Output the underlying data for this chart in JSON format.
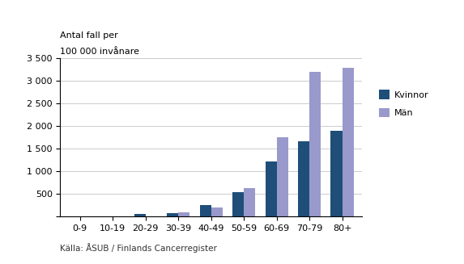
{
  "categories": [
    "0-9",
    "10-19",
    "20-29",
    "30-39",
    "40-49",
    "50-59",
    "60-69",
    "70-79",
    "80+"
  ],
  "kvinnor": [
    0,
    0,
    50,
    75,
    260,
    540,
    1210,
    1670,
    1900
  ],
  "man": [
    0,
    0,
    0,
    90,
    200,
    630,
    1750,
    3200,
    3280
  ],
  "color_kvinnor": "#1f4e79",
  "color_man": "#9999cc",
  "ylabel_line1": "Antal fall per",
  "ylabel_line2": "100 000 invånare",
  "ylim": [
    0,
    3500
  ],
  "yticks": [
    0,
    500,
    1000,
    1500,
    2000,
    2500,
    3000,
    3500
  ],
  "ytick_labels": [
    "",
    "500",
    "1 000",
    "1 500",
    "2 000",
    "2 500",
    "3 000",
    "3 500"
  ],
  "legend_labels": [
    "Kvinnor",
    "Män"
  ],
  "source_text": "Källa: ÅSUB / Finlands Cancerregister",
  "background_color": "#ffffff"
}
